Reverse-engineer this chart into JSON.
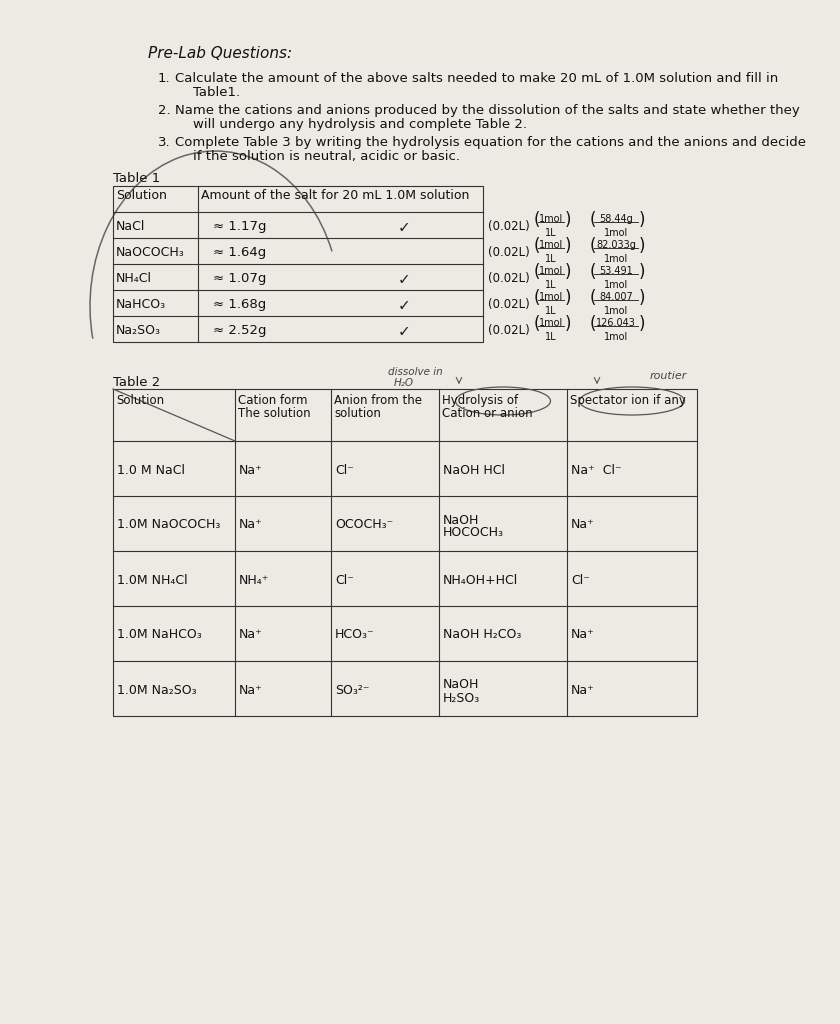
{
  "bg_color": "#ede9e3",
  "table1_rows": [
    [
      "NaCl",
      "≈ 1.17g"
    ],
    [
      "NaOCOCH₃",
      "≈ 1.64g"
    ],
    [
      "NH₄Cl",
      "≈ 1.07g"
    ],
    [
      "NaHCO₃",
      "≈ 1.68g"
    ],
    [
      "Na₂SO₃",
      "≈ 2.52g"
    ]
  ],
  "calc_prefix": "(0.02L)",
  "calc_frac_top": [
    "1mol",
    "1mol",
    "1mol",
    "1mol",
    "1mol"
  ],
  "calc_frac_bot": [
    "1L",
    "1L",
    "1L",
    "1L",
    "1L"
  ],
  "calc_molar_top": [
    "58.44g",
    "82.033g",
    "53.491",
    "84.007",
    "126.043"
  ],
  "calc_molar_bot": [
    "1mol",
    "1mol",
    "1mol",
    "1mol",
    "1mol"
  ],
  "checkmark_rows": [
    0,
    2,
    3,
    4
  ],
  "table2_row_data": [
    [
      "1.0 M NaCl",
      "Na⁺",
      "Cl⁻",
      "NaOH HCl",
      "Na⁺  Cl⁻"
    ],
    [
      "1.0M NaOCOCH₃",
      "Na⁺",
      "OCOCH₃⁻",
      "NaOH\nHOCOCH₃",
      "Na⁺"
    ],
    [
      "1.0M NH₄Cl",
      "NH₄⁺",
      "Cl⁻",
      "NH₄OH+HCl",
      "Cl⁻"
    ],
    [
      "1.0M NaHCO₃",
      "Na⁺",
      "HCO₃⁻",
      "NaOH H₂CO₃",
      "Na⁺"
    ],
    [
      "1.0M Na₂SO₃",
      "Na⁺",
      "SO₃²⁻",
      "NaOH\nH₂SO₃",
      "Na⁺"
    ]
  ]
}
